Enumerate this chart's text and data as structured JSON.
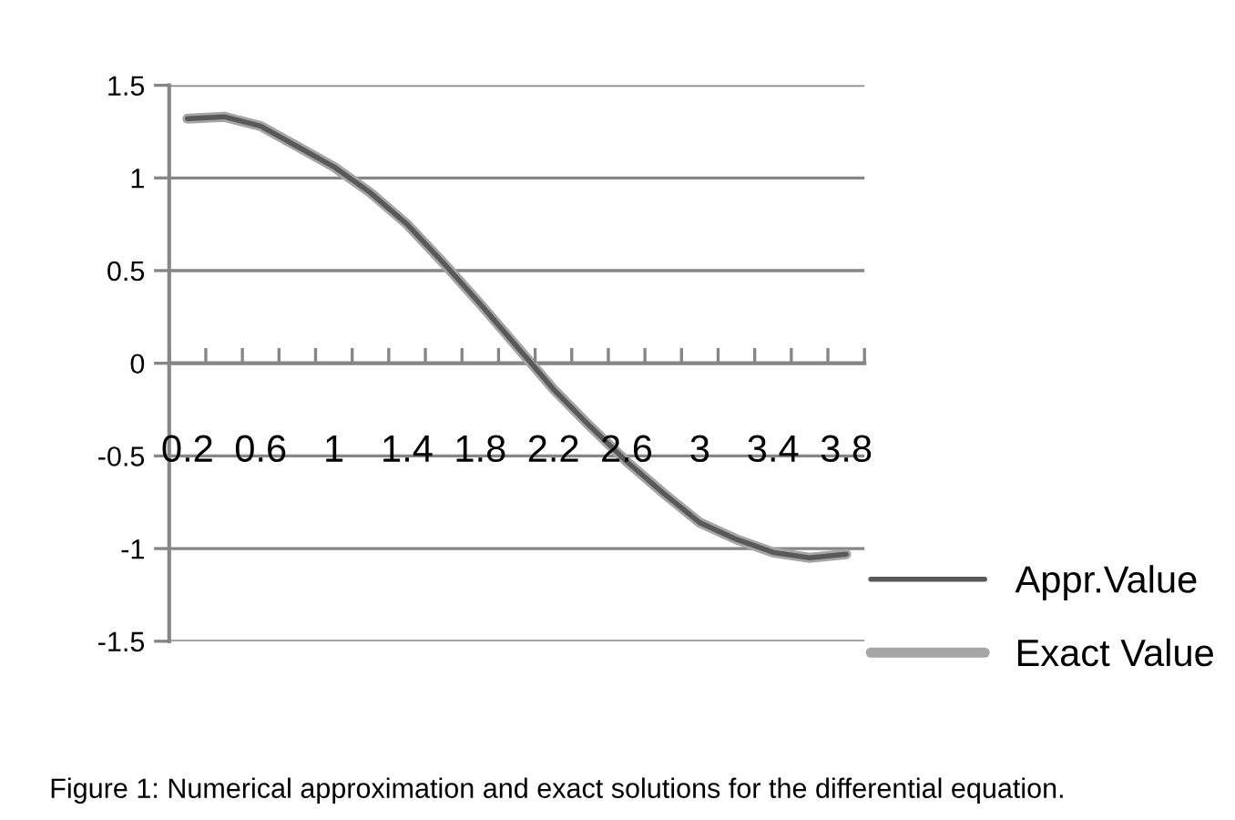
{
  "chart_data": {
    "type": "line",
    "categories": [
      "0.2",
      null,
      "0.6",
      null,
      "1",
      null,
      "1.4",
      null,
      "1.8",
      null,
      "2.2",
      null,
      "2.6",
      null,
      "3",
      null,
      "3.4",
      null,
      "3.8"
    ],
    "series": [
      {
        "name": "Appr.Value",
        "color": "#595959",
        "values": [
          1.32,
          1.33,
          1.28,
          1.17,
          1.06,
          0.92,
          0.75,
          0.54,
          0.32,
          0.09,
          -0.14,
          -0.34,
          -0.53,
          -0.7,
          -0.86,
          -0.95,
          -1.02,
          -1.05,
          -1.03
        ]
      },
      {
        "name": "Exact Value",
        "color": "#a6a6a6",
        "values": [
          1.32,
          1.33,
          1.28,
          1.17,
          1.06,
          0.92,
          0.75,
          0.54,
          0.32,
          0.09,
          -0.14,
          -0.34,
          -0.53,
          -0.7,
          -0.86,
          -0.95,
          -1.02,
          -1.05,
          -1.03
        ]
      }
    ],
    "ylim": [
      -1.5,
      1.5
    ],
    "yticks": [
      -1.5,
      -1,
      -0.5,
      0,
      0.5,
      1,
      1.5
    ],
    "grid": "y",
    "legend": "right",
    "marker": "none",
    "line_style": "solid",
    "annotations": [
      "Figure 1: Numerical approximation and exact solutions for the differential equation."
    ]
  }
}
